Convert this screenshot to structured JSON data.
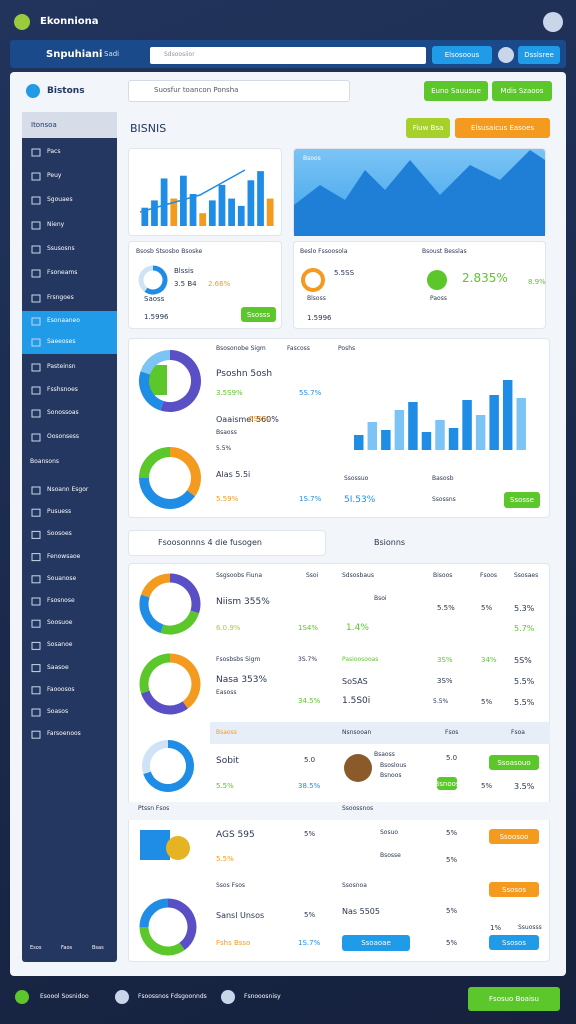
{
  "topbar": {
    "brand": "Ekonniona"
  },
  "navbar": {
    "title": "Snpuhiani",
    "link": "Sadi",
    "search": "Sdsoosiior",
    "buttons": [
      "Elsosoous",
      "Dsslsree"
    ]
  },
  "panel": {
    "title": "Bistons",
    "search": "Suosfur toancon Ponsha",
    "actions": [
      "Euno Sauusue",
      "Mdis Szaoos"
    ],
    "heading": "BISNIS",
    "heading_buttons": [
      "Fiuw Bsa",
      "Elsusaicus Easoes"
    ]
  },
  "sidebar": {
    "header": "Itonsoa",
    "items": [
      "Pacs",
      "Peuy",
      "Sgouaes",
      "Nieny",
      "Ssusosns",
      "Fsoneams",
      "Frsngoes",
      "Esonaaneo",
      "Saeeoses",
      "Pasteinsn",
      "Fsshsnoes",
      "Sonossoas",
      "Oosonsess"
    ],
    "section": "Boansons",
    "items2": [
      "Nsoann Esgor",
      "Pusuess",
      "Soosoes",
      "Fenowsaoe",
      "Souanose",
      "Fsosnose",
      "Soosuoe",
      "Sosanoe",
      "Saasoe",
      "Faooosos",
      "Soasos",
      "Farsoenoos"
    ],
    "footer": [
      "Esos",
      "Faos",
      "Bsas"
    ]
  },
  "charts": {
    "bars1": {
      "ylim": [
        0,
        70
      ],
      "values": [
        20,
        28,
        52,
        30,
        55,
        35,
        14,
        28,
        45,
        30,
        22,
        50,
        60,
        30
      ],
      "colors": [
        "#1f8de6",
        "#1f8de6",
        "#1f8de6",
        "#f39a1f",
        "#1f8de6",
        "#1f8de6",
        "#f39a1f",
        "#1f8de6",
        "#1f8de6",
        "#1f8de6",
        "#1f8de6",
        "#1f8de6",
        "#1f8de6",
        "#f39a1f"
      ]
    },
    "bars2": {
      "ylim": [
        0,
        100
      ],
      "values": [
        15,
        28,
        20,
        40,
        48,
        18,
        30,
        22,
        50,
        35,
        55,
        70,
        52
      ],
      "colors": [
        "#1f8de6",
        "#7cc4f5",
        "#1f8de6",
        "#7cc4f5",
        "#1f8de6",
        "#1f8de6",
        "#7cc4f5",
        "#1f8de6",
        "#1f8de6",
        "#7cc4f5",
        "#1f8de6",
        "#1f8de6",
        "#7cc4f5"
      ]
    },
    "donuts": [
      {
        "values": [
          60,
          40
        ],
        "colors": [
          "#1f8de6",
          "#cfe3f6"
        ]
      },
      {
        "values": [
          55,
          25,
          20
        ],
        "colors": [
          "#5a4fc4",
          "#1f8de6",
          "#7cc4f5"
        ]
      },
      {
        "values": [
          35,
          40,
          25
        ],
        "colors": [
          "#f39a1f",
          "#1f8de6",
          "#5cc72b"
        ]
      },
      {
        "values": [
          30,
          25,
          25,
          20
        ],
        "colors": [
          "#5a4fc4",
          "#5cc72b",
          "#1f8de6",
          "#f39a1f"
        ]
      },
      {
        "values": [
          40,
          30,
          30
        ],
        "colors": [
          "#f39a1f",
          "#5a4fc4",
          "#5cc72b"
        ]
      },
      {
        "values": [
          70,
          30
        ],
        "colors": [
          "#1f8de6",
          "#cfe3f6"
        ]
      },
      {
        "values": [
          40,
          35,
          25
        ],
        "colors": [
          "#5a4fc4",
          "#5cc72b",
          "#1f8de6"
        ]
      }
    ]
  },
  "cards": {
    "map_label": "Bsoos",
    "c": {
      "title": "Bsosb Stsosbo Bsoske",
      "lines": [
        "Blssis",
        "3.5 B4",
        "2.66%",
        "Saoss",
        "1.5996"
      ],
      "button": "Ssosss"
    },
    "d": {
      "title": "Beslo Fssoosola",
      "title2": "Bsoust Besslas",
      "lines": [
        "5.5SS",
        "2.835%",
        "8.9%",
        "Blsoss",
        "1.5996",
        "Paoss"
      ]
    },
    "e": {
      "texts": [
        "Bsosonobe Sigm",
        "Fascoss",
        "Psoshn 5osh",
        "3.5S9%",
        "5S.7%",
        "Oaaismel 560%",
        "Bsaoss",
        "5S5%",
        "Poshs",
        "5.5%",
        "Alas 5.5i",
        "5.59%",
        "1S.7%",
        "Ssossuo",
        "Basosb",
        "5I.53%",
        "Ssossns"
      ],
      "button": "Ssosse"
    },
    "f": {
      "input": "Fsoosonnns 4 die fusogen",
      "title": "Bsionns"
    },
    "g": {
      "header": [
        "Ssgsoobs Fiuna",
        "Ssoi",
        "Sdsosbaus",
        "Bisoos",
        "Fsoos",
        "Ssosaes"
      ],
      "left": [
        "Niism 355%",
        "6.0.9%",
        "1S4%",
        "Fsosbsbs Sigm",
        "3S.7%",
        "Nasa 353%",
        "Easoss",
        "34.5%",
        "Bsaoss",
        "Sobit",
        "5.0",
        "5.5%",
        "38.5%",
        "Ptssn Fsos",
        "AGS 595",
        "5%",
        "5.5%",
        "Ssos Fsos",
        "Sansl Unsos",
        "5%",
        "Fshs Bsso",
        "1S.7%"
      ],
      "right": [
        "Bsoi",
        "1.4%",
        "5.5%",
        "5%",
        "5.3%",
        "5.7%",
        "Pasioosooas",
        "3S%",
        "34%",
        "5S%",
        "SoSAS",
        "3S%",
        "5.5%",
        "5.5%",
        "1.5S0i",
        "5%",
        "5.5%",
        "Nsnsooan",
        "Fsos",
        "Fsoa",
        "Bsaoss",
        "Bsoslous",
        "Bsnoos",
        "5.0",
        "5%",
        "3.5%",
        "Ssoossnos",
        "Sosuo",
        "Bsosse",
        "5%",
        "5%",
        "Ssosnoa",
        "Nas 5505",
        "5%",
        "1%",
        "5%",
        "Ssuosss"
      ],
      "buttons": [
        "Ssoasouo",
        "Ssoosoo",
        "Ssosos",
        "Ssoaoae",
        "Ssosos",
        "Bsnoos"
      ]
    }
  },
  "footer": {
    "items": [
      "Esoool Sosnidoo",
      "Fsoossnos Fdsgoonnds",
      "Fsnooosnisy"
    ],
    "button": "Fsosuo Boaisu"
  }
}
